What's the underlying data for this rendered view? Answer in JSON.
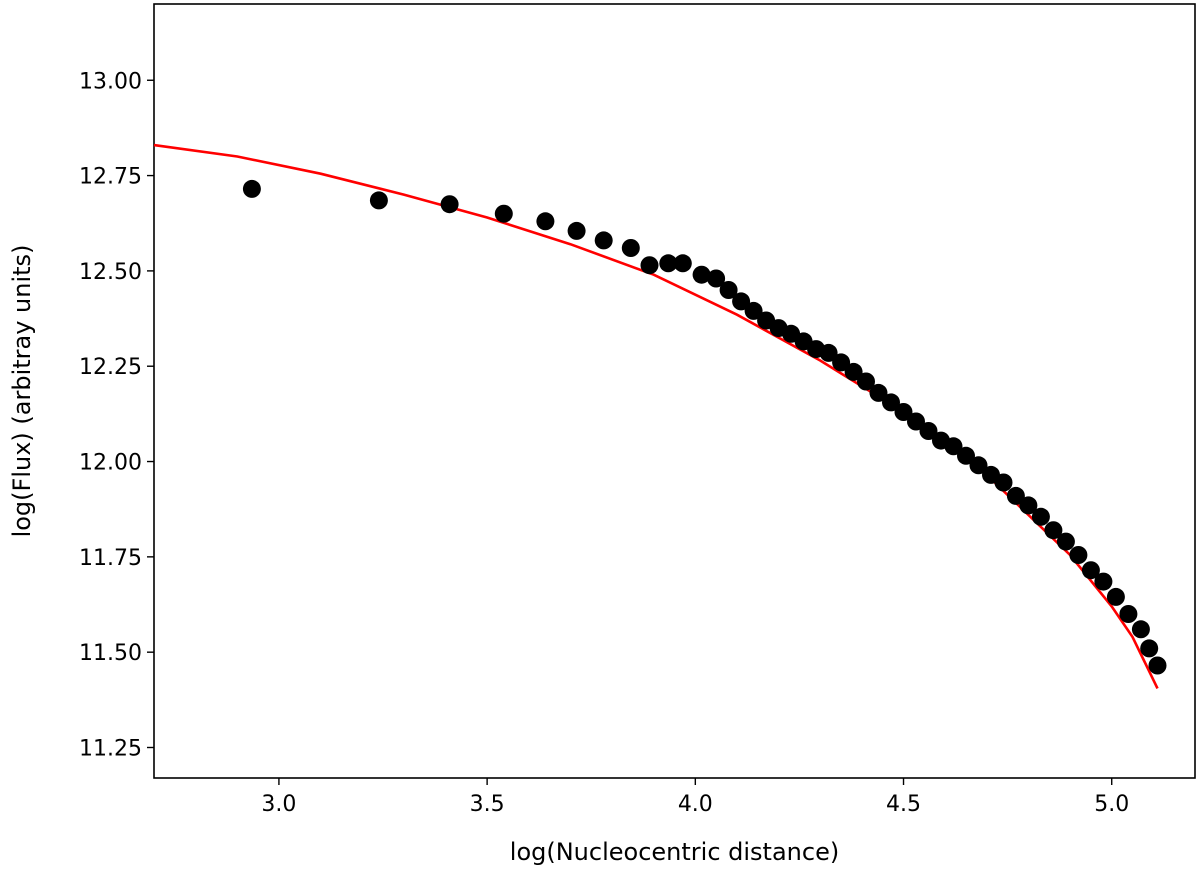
{
  "chart_data": {
    "type": "scatter",
    "title": "",
    "xlabel": "log(Nucleocentric distance)",
    "ylabel": "log(Flux) (arbitray units)",
    "xlim": [
      2.7,
      5.2
    ],
    "ylim": [
      11.17,
      13.2
    ],
    "x_ticks": [
      3.0,
      3.5,
      4.0,
      4.5,
      5.0
    ],
    "x_tick_labels": [
      "3.0",
      "3.5",
      "4.0",
      "4.5",
      "5.0"
    ],
    "y_ticks": [
      11.25,
      11.5,
      11.75,
      12.0,
      12.25,
      12.5,
      12.75,
      13.0
    ],
    "y_tick_labels": [
      "11.25",
      "11.50",
      "11.75",
      "12.00",
      "12.25",
      "12.50",
      "12.75",
      "13.00"
    ],
    "grid": false,
    "colors": {
      "points": "#000000",
      "fit": "#ff0000"
    },
    "series": [
      {
        "kind": "points",
        "x": [
          2.935,
          3.24,
          3.41,
          3.54,
          3.64,
          3.715,
          3.78,
          3.845,
          3.89,
          3.935,
          3.97,
          4.015,
          4.05,
          4.08,
          4.11,
          4.14,
          4.17,
          4.2,
          4.23,
          4.26,
          4.29,
          4.32,
          4.35,
          4.38,
          4.41,
          4.44,
          4.47,
          4.5,
          4.53,
          4.56,
          4.59,
          4.62,
          4.65,
          4.68,
          4.71,
          4.74,
          4.77,
          4.8,
          4.83,
          4.86,
          4.89,
          4.92,
          4.95,
          4.98,
          5.01,
          5.04,
          5.07,
          5.09,
          5.11
        ],
        "y": [
          12.715,
          12.685,
          12.675,
          12.65,
          12.63,
          12.605,
          12.58,
          12.56,
          12.515,
          12.52,
          12.52,
          12.49,
          12.48,
          12.45,
          12.42,
          12.395,
          12.37,
          12.35,
          12.335,
          12.315,
          12.295,
          12.285,
          12.26,
          12.235,
          12.21,
          12.18,
          12.155,
          12.13,
          12.105,
          12.08,
          12.055,
          12.04,
          12.015,
          11.99,
          11.965,
          11.945,
          11.91,
          11.885,
          11.855,
          11.82,
          11.79,
          11.755,
          11.715,
          11.685,
          11.645,
          11.6,
          11.56,
          11.51,
          11.465
        ]
      },
      {
        "kind": "line",
        "x": [
          2.7,
          2.9,
          3.1,
          3.3,
          3.5,
          3.7,
          3.9,
          4.1,
          4.3,
          4.5,
          4.7,
          4.9,
          5.0,
          5.05,
          5.11
        ],
        "y": [
          12.83,
          12.8,
          12.755,
          12.7,
          12.64,
          12.57,
          12.49,
          12.385,
          12.265,
          12.13,
          11.965,
          11.755,
          11.62,
          11.54,
          11.405
        ]
      }
    ]
  }
}
